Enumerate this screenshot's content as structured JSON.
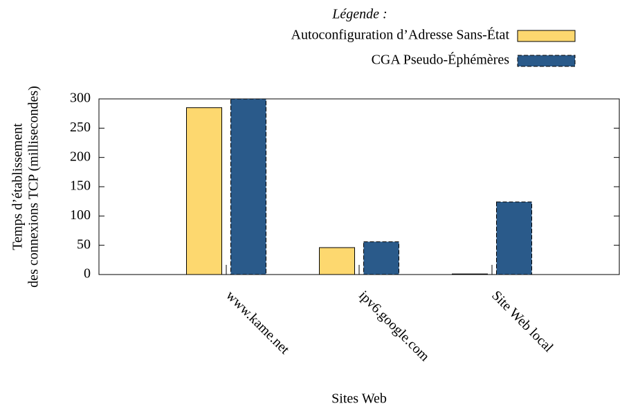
{
  "chart_data": {
    "type": "bar",
    "legend_title": "Légende :",
    "xlabel": "Sites Web",
    "ylabel": [
      "Temps d’établissement",
      "des connexions TCP (millisecondes)"
    ],
    "categories": [
      "www.kame.net",
      "ipv6.google.com",
      "Site Web local"
    ],
    "series": [
      {
        "name": "Autoconfiguration d’Adresse Sans-État",
        "color": "#fdd86f",
        "values": [
          285,
          46,
          1
        ]
      },
      {
        "name": "CGA Pseudo-Éphémères",
        "color": "#2a5a8a",
        "dashed": true,
        "values": [
          300,
          56,
          124
        ]
      }
    ],
    "ylim": [
      0,
      300
    ],
    "yticks": [
      0,
      50,
      100,
      150,
      200,
      250,
      300
    ],
    "legend": "top-right"
  }
}
